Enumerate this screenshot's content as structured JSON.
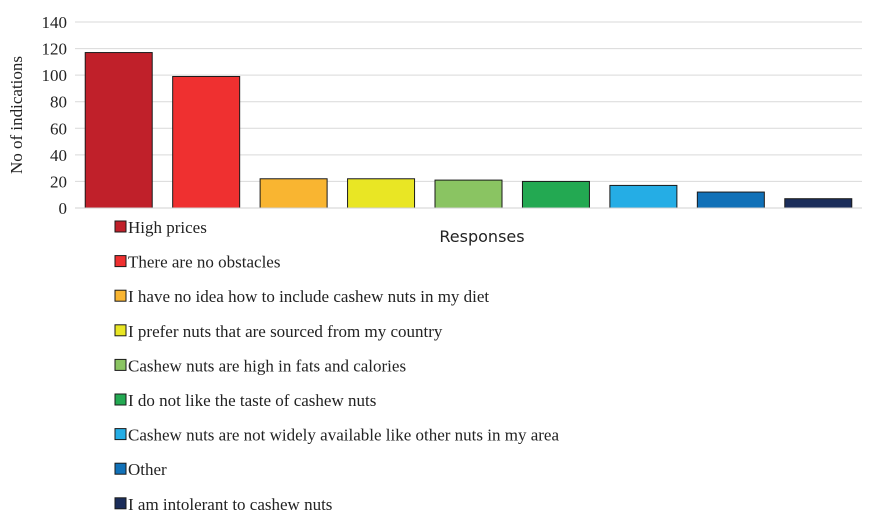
{
  "chart_data": {
    "type": "bar",
    "title": "",
    "xlabel": "Responses",
    "ylabel": "No of indications",
    "ylim": [
      0,
      140
    ],
    "yticks": [
      0,
      20,
      40,
      60,
      80,
      100,
      120,
      140
    ],
    "grid": "horizontal",
    "legend_position": "bottom",
    "categories": [
      "High prices",
      "There are no obstacles",
      "I have no idea how to include cashew nuts in my diet",
      "I prefer nuts that are sourced from my country",
      "Cashew nuts are high in fats and calories",
      "I do not like the taste of cashew nuts",
      "Cashew nuts are not widely available like other nuts in my area",
      "Other",
      "I am intolerant to cashew nuts"
    ],
    "values": [
      117,
      99,
      22,
      22,
      21,
      20,
      17,
      12,
      7
    ],
    "colors": [
      "#c0202a",
      "#ef3030",
      "#f9b531",
      "#e9e624",
      "#8ac462",
      "#23a952",
      "#25ade5",
      "#1171b8",
      "#1b2d5a"
    ]
  }
}
